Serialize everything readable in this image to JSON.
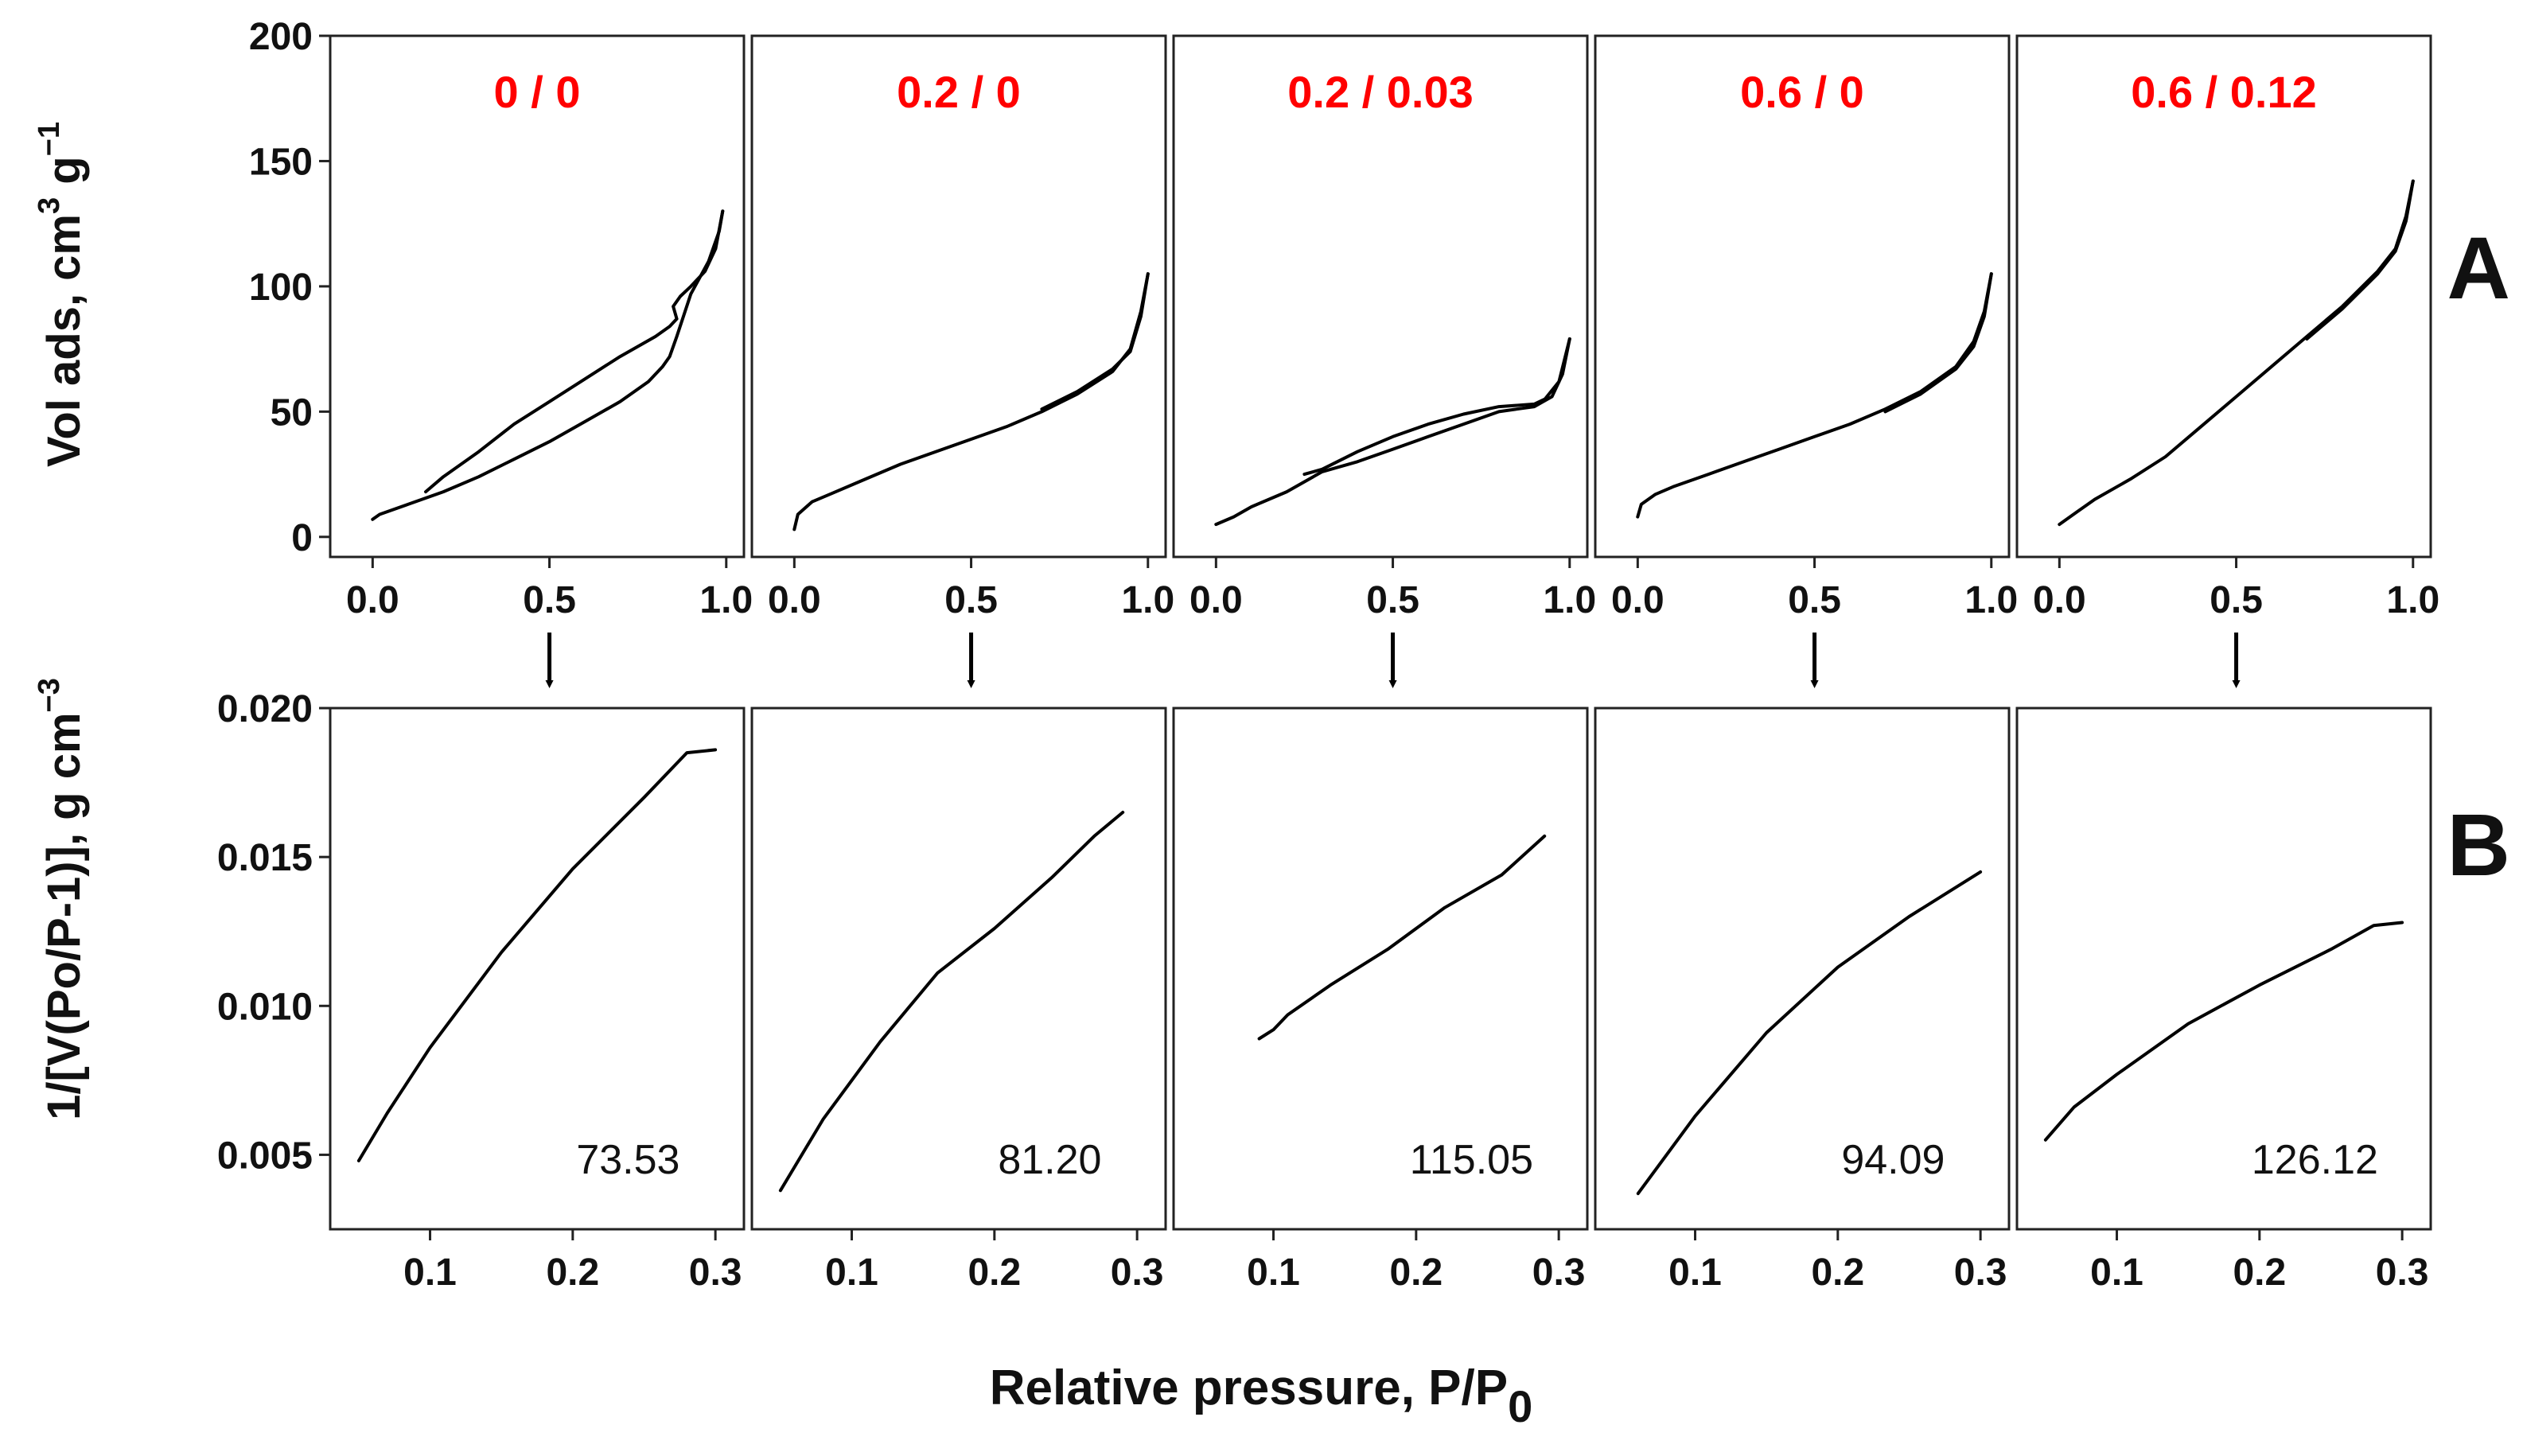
{
  "chart_data": {
    "type": "line",
    "accent_color": "#ff0000",
    "row_labels": [
      "A",
      "B"
    ],
    "xlabel": "Relative pressure, P/P",
    "xlabel_sub": "0",
    "samples": [
      "0 / 0",
      "0.2 / 0",
      "0.2 / 0.03",
      "0.6 / 0",
      "0.6 / 0.12"
    ],
    "isotherms": {
      "ylabel_main": "Vol ads, cm",
      "ylabel_sup1": "3",
      "ylabel_mid": " g",
      "ylabel_sup2": "−1",
      "xlim": [
        -0.12,
        1.05
      ],
      "ylim": [
        -8,
        200
      ],
      "xticks": [
        "0.0",
        "0.5",
        "1.0"
      ],
      "yticks": [
        "0",
        "50",
        "100",
        "150",
        "200"
      ],
      "panels": [
        {
          "adsorption": [
            [
              0,
              7
            ],
            [
              0.02,
              9
            ],
            [
              0.1,
              13
            ],
            [
              0.2,
              18
            ],
            [
              0.3,
              24
            ],
            [
              0.4,
              31
            ],
            [
              0.5,
              38
            ],
            [
              0.6,
              46
            ],
            [
              0.7,
              54
            ],
            [
              0.78,
              62
            ],
            [
              0.82,
              68
            ],
            [
              0.84,
              72
            ],
            [
              0.86,
              80
            ],
            [
              0.9,
              97
            ],
            [
              0.95,
              110
            ],
            [
              0.98,
              122
            ],
            [
              0.99,
              130
            ]
          ],
          "desorption": [
            [
              0.99,
              130
            ],
            [
              0.97,
              115
            ],
            [
              0.94,
              106
            ],
            [
              0.9,
              100
            ],
            [
              0.87,
              96
            ],
            [
              0.85,
              92
            ],
            [
              0.86,
              87
            ],
            [
              0.84,
              84
            ],
            [
              0.8,
              80
            ],
            [
              0.7,
              72
            ],
            [
              0.6,
              63
            ],
            [
              0.5,
              54
            ],
            [
              0.4,
              45
            ],
            [
              0.3,
              34
            ],
            [
              0.2,
              24
            ],
            [
              0.15,
              18
            ]
          ]
        },
        {
          "adsorption": [
            [
              0,
              3
            ],
            [
              0.01,
              9
            ],
            [
              0.05,
              14
            ],
            [
              0.1,
              17
            ],
            [
              0.2,
              23
            ],
            [
              0.3,
              29
            ],
            [
              0.4,
              34
            ],
            [
              0.5,
              39
            ],
            [
              0.6,
              44
            ],
            [
              0.7,
              50
            ],
            [
              0.8,
              57
            ],
            [
              0.9,
              66
            ],
            [
              0.95,
              75
            ],
            [
              0.98,
              90
            ],
            [
              1.0,
              105
            ]
          ],
          "desorption": [
            [
              1.0,
              105
            ],
            [
              0.98,
              88
            ],
            [
              0.95,
              74
            ],
            [
              0.9,
              67
            ],
            [
              0.8,
              58
            ],
            [
              0.7,
              51
            ]
          ]
        },
        {
          "adsorption": [
            [
              0,
              5
            ],
            [
              0.05,
              8
            ],
            [
              0.1,
              12
            ],
            [
              0.2,
              18
            ],
            [
              0.3,
              26
            ],
            [
              0.4,
              30
            ],
            [
              0.5,
              35
            ],
            [
              0.6,
              40
            ],
            [
              0.7,
              45
            ],
            [
              0.8,
              50
            ],
            [
              0.85,
              51
            ],
            [
              0.9,
              52
            ],
            [
              0.95,
              56
            ],
            [
              0.98,
              65
            ],
            [
              1.0,
              79
            ]
          ],
          "desorption": [
            [
              1.0,
              79
            ],
            [
              0.97,
              62
            ],
            [
              0.93,
              55
            ],
            [
              0.9,
              53
            ],
            [
              0.8,
              52
            ],
            [
              0.7,
              49
            ],
            [
              0.6,
              45
            ],
            [
              0.5,
              40
            ],
            [
              0.4,
              34
            ],
            [
              0.3,
              27
            ],
            [
              0.25,
              25
            ]
          ]
        },
        {
          "adsorption": [
            [
              0,
              8
            ],
            [
              0.01,
              13
            ],
            [
              0.05,
              17
            ],
            [
              0.1,
              20
            ],
            [
              0.2,
              25
            ],
            [
              0.3,
              30
            ],
            [
              0.4,
              35
            ],
            [
              0.5,
              40
            ],
            [
              0.6,
              45
            ],
            [
              0.7,
              51
            ],
            [
              0.8,
              58
            ],
            [
              0.9,
              68
            ],
            [
              0.95,
              78
            ],
            [
              0.98,
              90
            ],
            [
              1.0,
              105
            ]
          ],
          "desorption": [
            [
              1.0,
              105
            ],
            [
              0.98,
              88
            ],
            [
              0.95,
              76
            ],
            [
              0.9,
              67
            ],
            [
              0.8,
              57
            ],
            [
              0.7,
              50
            ]
          ]
        },
        {
          "adsorption": [
            [
              0,
              5
            ],
            [
              0.05,
              10
            ],
            [
              0.1,
              15
            ],
            [
              0.2,
              23
            ],
            [
              0.3,
              32
            ],
            [
              0.4,
              44
            ],
            [
              0.5,
              56
            ],
            [
              0.6,
              68
            ],
            [
              0.7,
              80
            ],
            [
              0.8,
              92
            ],
            [
              0.9,
              106
            ],
            [
              0.95,
              115
            ],
            [
              0.98,
              128
            ],
            [
              1.0,
              142
            ]
          ],
          "desorption": [
            [
              1.0,
              142
            ],
            [
              0.98,
              126
            ],
            [
              0.95,
              114
            ],
            [
              0.9,
              105
            ],
            [
              0.8,
              91
            ],
            [
              0.7,
              79
            ]
          ]
        }
      ]
    },
    "bet": {
      "ylabel": "1/[V(Po/P-1)], g cm",
      "ylabel_sup": "−3",
      "xlim": [
        0.03,
        0.32
      ],
      "ylim": [
        0.0025,
        0.02
      ],
      "xticks": [
        "0.1",
        "0.2",
        "0.3"
      ],
      "yticks": [
        "0.005",
        "0.010",
        "0.015",
        "0.020"
      ],
      "panels": [
        {
          "value": "73.53",
          "points": [
            [
              0.05,
              0.0048
            ],
            [
              0.07,
              0.0064
            ],
            [
              0.1,
              0.0086
            ],
            [
              0.15,
              0.0118
            ],
            [
              0.2,
              0.0146
            ],
            [
              0.25,
              0.017
            ],
            [
              0.28,
              0.0185
            ],
            [
              0.3,
              0.0186
            ]
          ]
        },
        {
          "value": "81.20",
          "points": [
            [
              0.05,
              0.0038
            ],
            [
              0.08,
              0.0062
            ],
            [
              0.12,
              0.0088
            ],
            [
              0.16,
              0.0111
            ],
            [
              0.2,
              0.0126
            ],
            [
              0.24,
              0.0143
            ],
            [
              0.27,
              0.0157
            ],
            [
              0.29,
              0.0165
            ]
          ]
        },
        {
          "value": "115.05",
          "points": [
            [
              0.09,
              0.0089
            ],
            [
              0.1,
              0.0092
            ],
            [
              0.11,
              0.0097
            ],
            [
              0.14,
              0.0107
            ],
            [
              0.18,
              0.0119
            ],
            [
              0.22,
              0.0133
            ],
            [
              0.26,
              0.0144
            ],
            [
              0.29,
              0.0157
            ]
          ]
        },
        {
          "value": "94.09",
          "points": [
            [
              0.06,
              0.0037
            ],
            [
              0.1,
              0.0063
            ],
            [
              0.15,
              0.0091
            ],
            [
              0.2,
              0.0113
            ],
            [
              0.25,
              0.013
            ],
            [
              0.3,
              0.0145
            ]
          ]
        },
        {
          "value": "126.12",
          "points": [
            [
              0.05,
              0.0055
            ],
            [
              0.07,
              0.0066
            ],
            [
              0.1,
              0.0077
            ],
            [
              0.15,
              0.0094
            ],
            [
              0.2,
              0.0107
            ],
            [
              0.25,
              0.0119
            ],
            [
              0.28,
              0.0127
            ],
            [
              0.3,
              0.0128
            ]
          ]
        }
      ]
    }
  }
}
